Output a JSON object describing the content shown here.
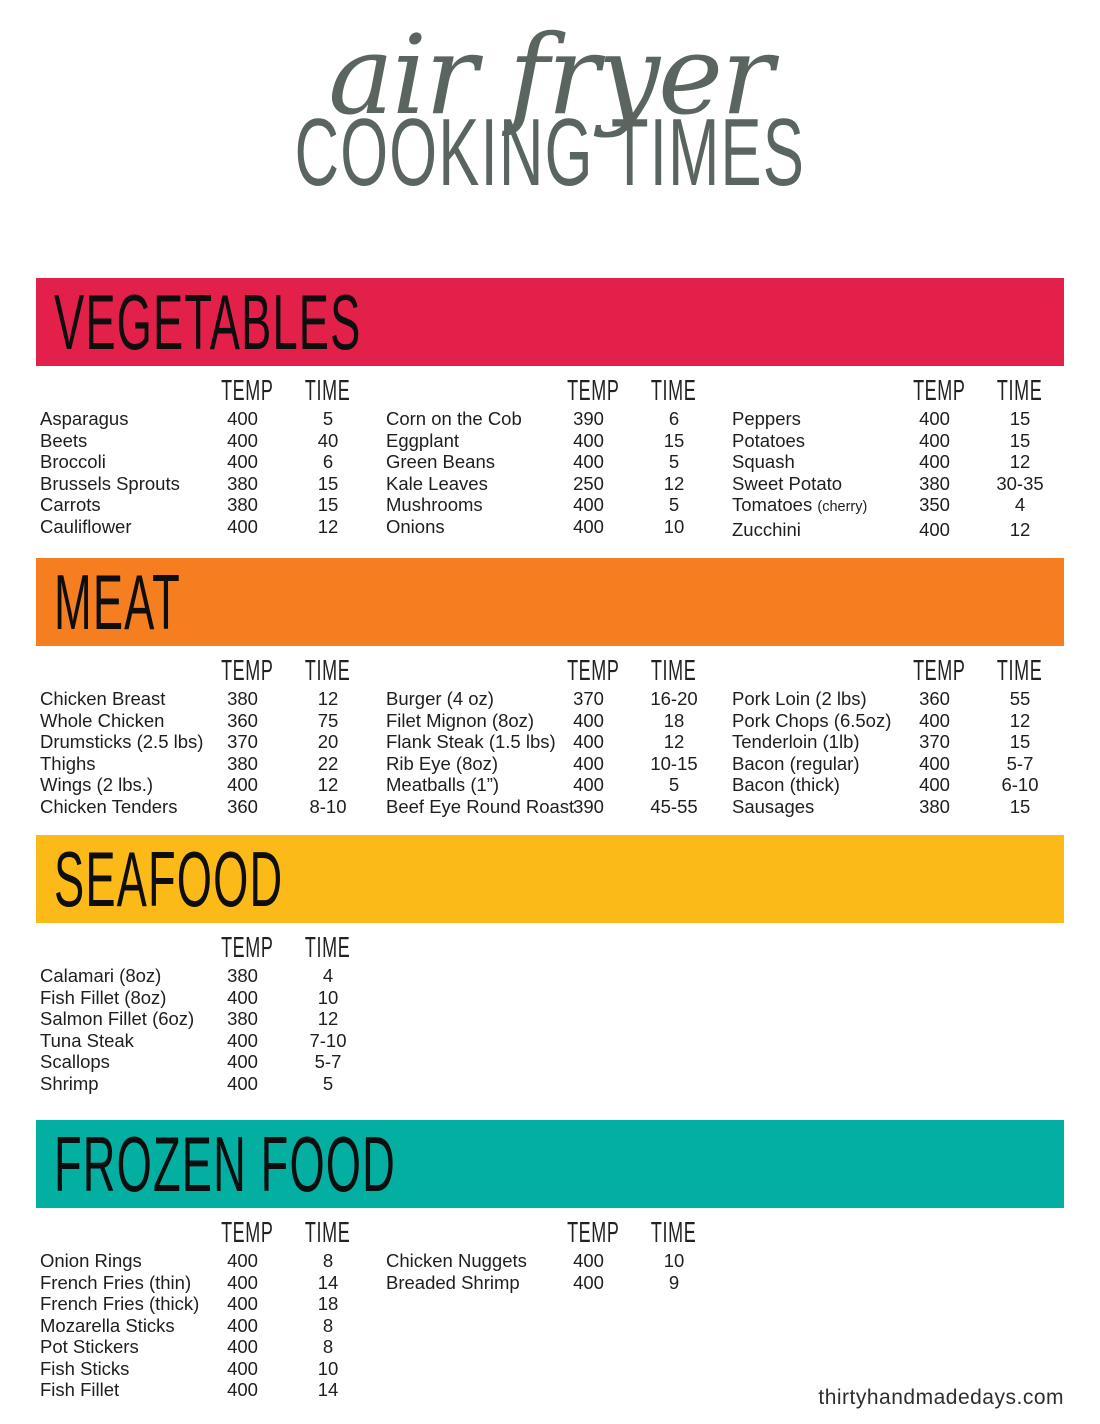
{
  "title": {
    "script": "air fryer",
    "block": "COOKING TIMES"
  },
  "columns": {
    "temp": "TEMP",
    "time": "TIME"
  },
  "footer": "thirtyhandmadedays.com",
  "theme": {
    "header_text": "#5b655f",
    "body_text": "#1e1e1c"
  },
  "sections": [
    {
      "name": "VEGETABLES",
      "color": "#e2204a",
      "groups": [
        {
          "rows": [
            {
              "food": "Asparagus",
              "temp": "400",
              "time": "5"
            },
            {
              "food": "Beets",
              "temp": "400",
              "time": "40"
            },
            {
              "food": "Broccoli",
              "temp": "400",
              "time": "6"
            },
            {
              "food": "Brussels Sprouts",
              "temp": "380",
              "time": "15"
            },
            {
              "food": "Carrots",
              "temp": "380",
              "time": "15"
            },
            {
              "food": "Cauliflower",
              "temp": "400",
              "time": "12"
            }
          ]
        },
        {
          "rows": [
            {
              "food": "Corn on the Cob",
              "temp": "390",
              "time": "6"
            },
            {
              "food": "Eggplant",
              "temp": "400",
              "time": "15"
            },
            {
              "food": "Green Beans",
              "temp": "400",
              "time": "5"
            },
            {
              "food": "Kale Leaves",
              "temp": "250",
              "time": "12"
            },
            {
              "food": "Mushrooms",
              "temp": "400",
              "time": "5"
            },
            {
              "food": "Onions",
              "temp": "400",
              "time": "10"
            }
          ]
        },
        {
          "rows": [
            {
              "food": "Peppers",
              "temp": "400",
              "time": "15"
            },
            {
              "food": "Potatoes",
              "temp": "400",
              "time": "15"
            },
            {
              "food": "Squash",
              "temp": "400",
              "time": "12"
            },
            {
              "food": "Sweet Potato",
              "temp": "380",
              "time": "30-35"
            },
            {
              "food": "Tomatoes",
              "note": "(cherry)",
              "temp": "350",
              "time": "4"
            },
            {
              "food": "Zucchini",
              "temp": "400",
              "time": "12"
            }
          ]
        }
      ]
    },
    {
      "name": "MEAT",
      "color": "#f57e20",
      "groups": [
        {
          "rows": [
            {
              "food": "Chicken Breast",
              "temp": "380",
              "time": "12"
            },
            {
              "food": "Whole Chicken",
              "temp": "360",
              "time": "75"
            },
            {
              "food": "Drumsticks (2.5 lbs)",
              "temp": "370",
              "time": "20"
            },
            {
              "food": "Thighs",
              "temp": "380",
              "time": "22"
            },
            {
              "food": "Wings (2 lbs.)",
              "temp": "400",
              "time": "12"
            },
            {
              "food": "Chicken Tenders",
              "temp": "360",
              "time": "8-10"
            }
          ]
        },
        {
          "rows": [
            {
              "food": "Burger (4 oz)",
              "temp": "370",
              "time": "16-20"
            },
            {
              "food": "Filet Mignon (8oz)",
              "temp": "400",
              "time": "18"
            },
            {
              "food": "Flank Steak (1.5 lbs)",
              "temp": "400",
              "time": "12"
            },
            {
              "food": "Rib Eye (8oz)",
              "temp": "400",
              "time": "10-15"
            },
            {
              "food": "Meatballs (1”)",
              "temp": "400",
              "time": "5"
            },
            {
              "food": "Beef Eye Round Roast",
              "temp": "390",
              "time": "45-55"
            }
          ]
        },
        {
          "rows": [
            {
              "food": "Pork Loin (2 lbs)",
              "temp": "360",
              "time": "55"
            },
            {
              "food": "Pork Chops (6.5oz)",
              "temp": "400",
              "time": "12"
            },
            {
              "food": "Tenderloin (1lb)",
              "temp": "370",
              "time": "15"
            },
            {
              "food": "Bacon (regular)",
              "temp": "400",
              "time": "5-7"
            },
            {
              "food": "Bacon (thick)",
              "temp": "400",
              "time": "6-10"
            },
            {
              "food": "Sausages",
              "temp": "380",
              "time": "15"
            }
          ]
        }
      ]
    },
    {
      "name": "SEAFOOD",
      "color": "#fcba18",
      "groups": [
        {
          "rows": [
            {
              "food": "Calamari (8oz)",
              "temp": "380",
              "time": "4"
            },
            {
              "food": "Fish Fillet (8oz)",
              "temp": "400",
              "time": "10"
            },
            {
              "food": "Salmon Fillet (6oz)",
              "temp": "380",
              "time": "12"
            },
            {
              "food": "Tuna Steak",
              "temp": "400",
              "time": "7-10"
            },
            {
              "food": "Scallops",
              "temp": "400",
              "time": "5-7"
            },
            {
              "food": "Shrimp",
              "temp": "400",
              "time": "5"
            }
          ]
        }
      ]
    },
    {
      "name": "FROZEN FOOD",
      "color": "#02afa0",
      "groups": [
        {
          "rows": [
            {
              "food": "Onion Rings",
              "temp": "400",
              "time": "8"
            },
            {
              "food": "French Fries (thin)",
              "temp": "400",
              "time": "14"
            },
            {
              "food": "French Fries (thick)",
              "temp": "400",
              "time": "18"
            },
            {
              "food": "Mozarella Sticks",
              "temp": "400",
              "time": "8"
            },
            {
              "food": "Pot Stickers",
              "temp": "400",
              "time": "8"
            },
            {
              "food": "Fish Sticks",
              "temp": "400",
              "time": "10"
            },
            {
              "food": "Fish Fillet",
              "temp": "400",
              "time": "14"
            }
          ]
        },
        {
          "rows": [
            {
              "food": "Chicken Nuggets",
              "temp": "400",
              "time": "10"
            },
            {
              "food": "Breaded Shrimp",
              "temp": "400",
              "time": "9"
            }
          ]
        }
      ]
    }
  ]
}
